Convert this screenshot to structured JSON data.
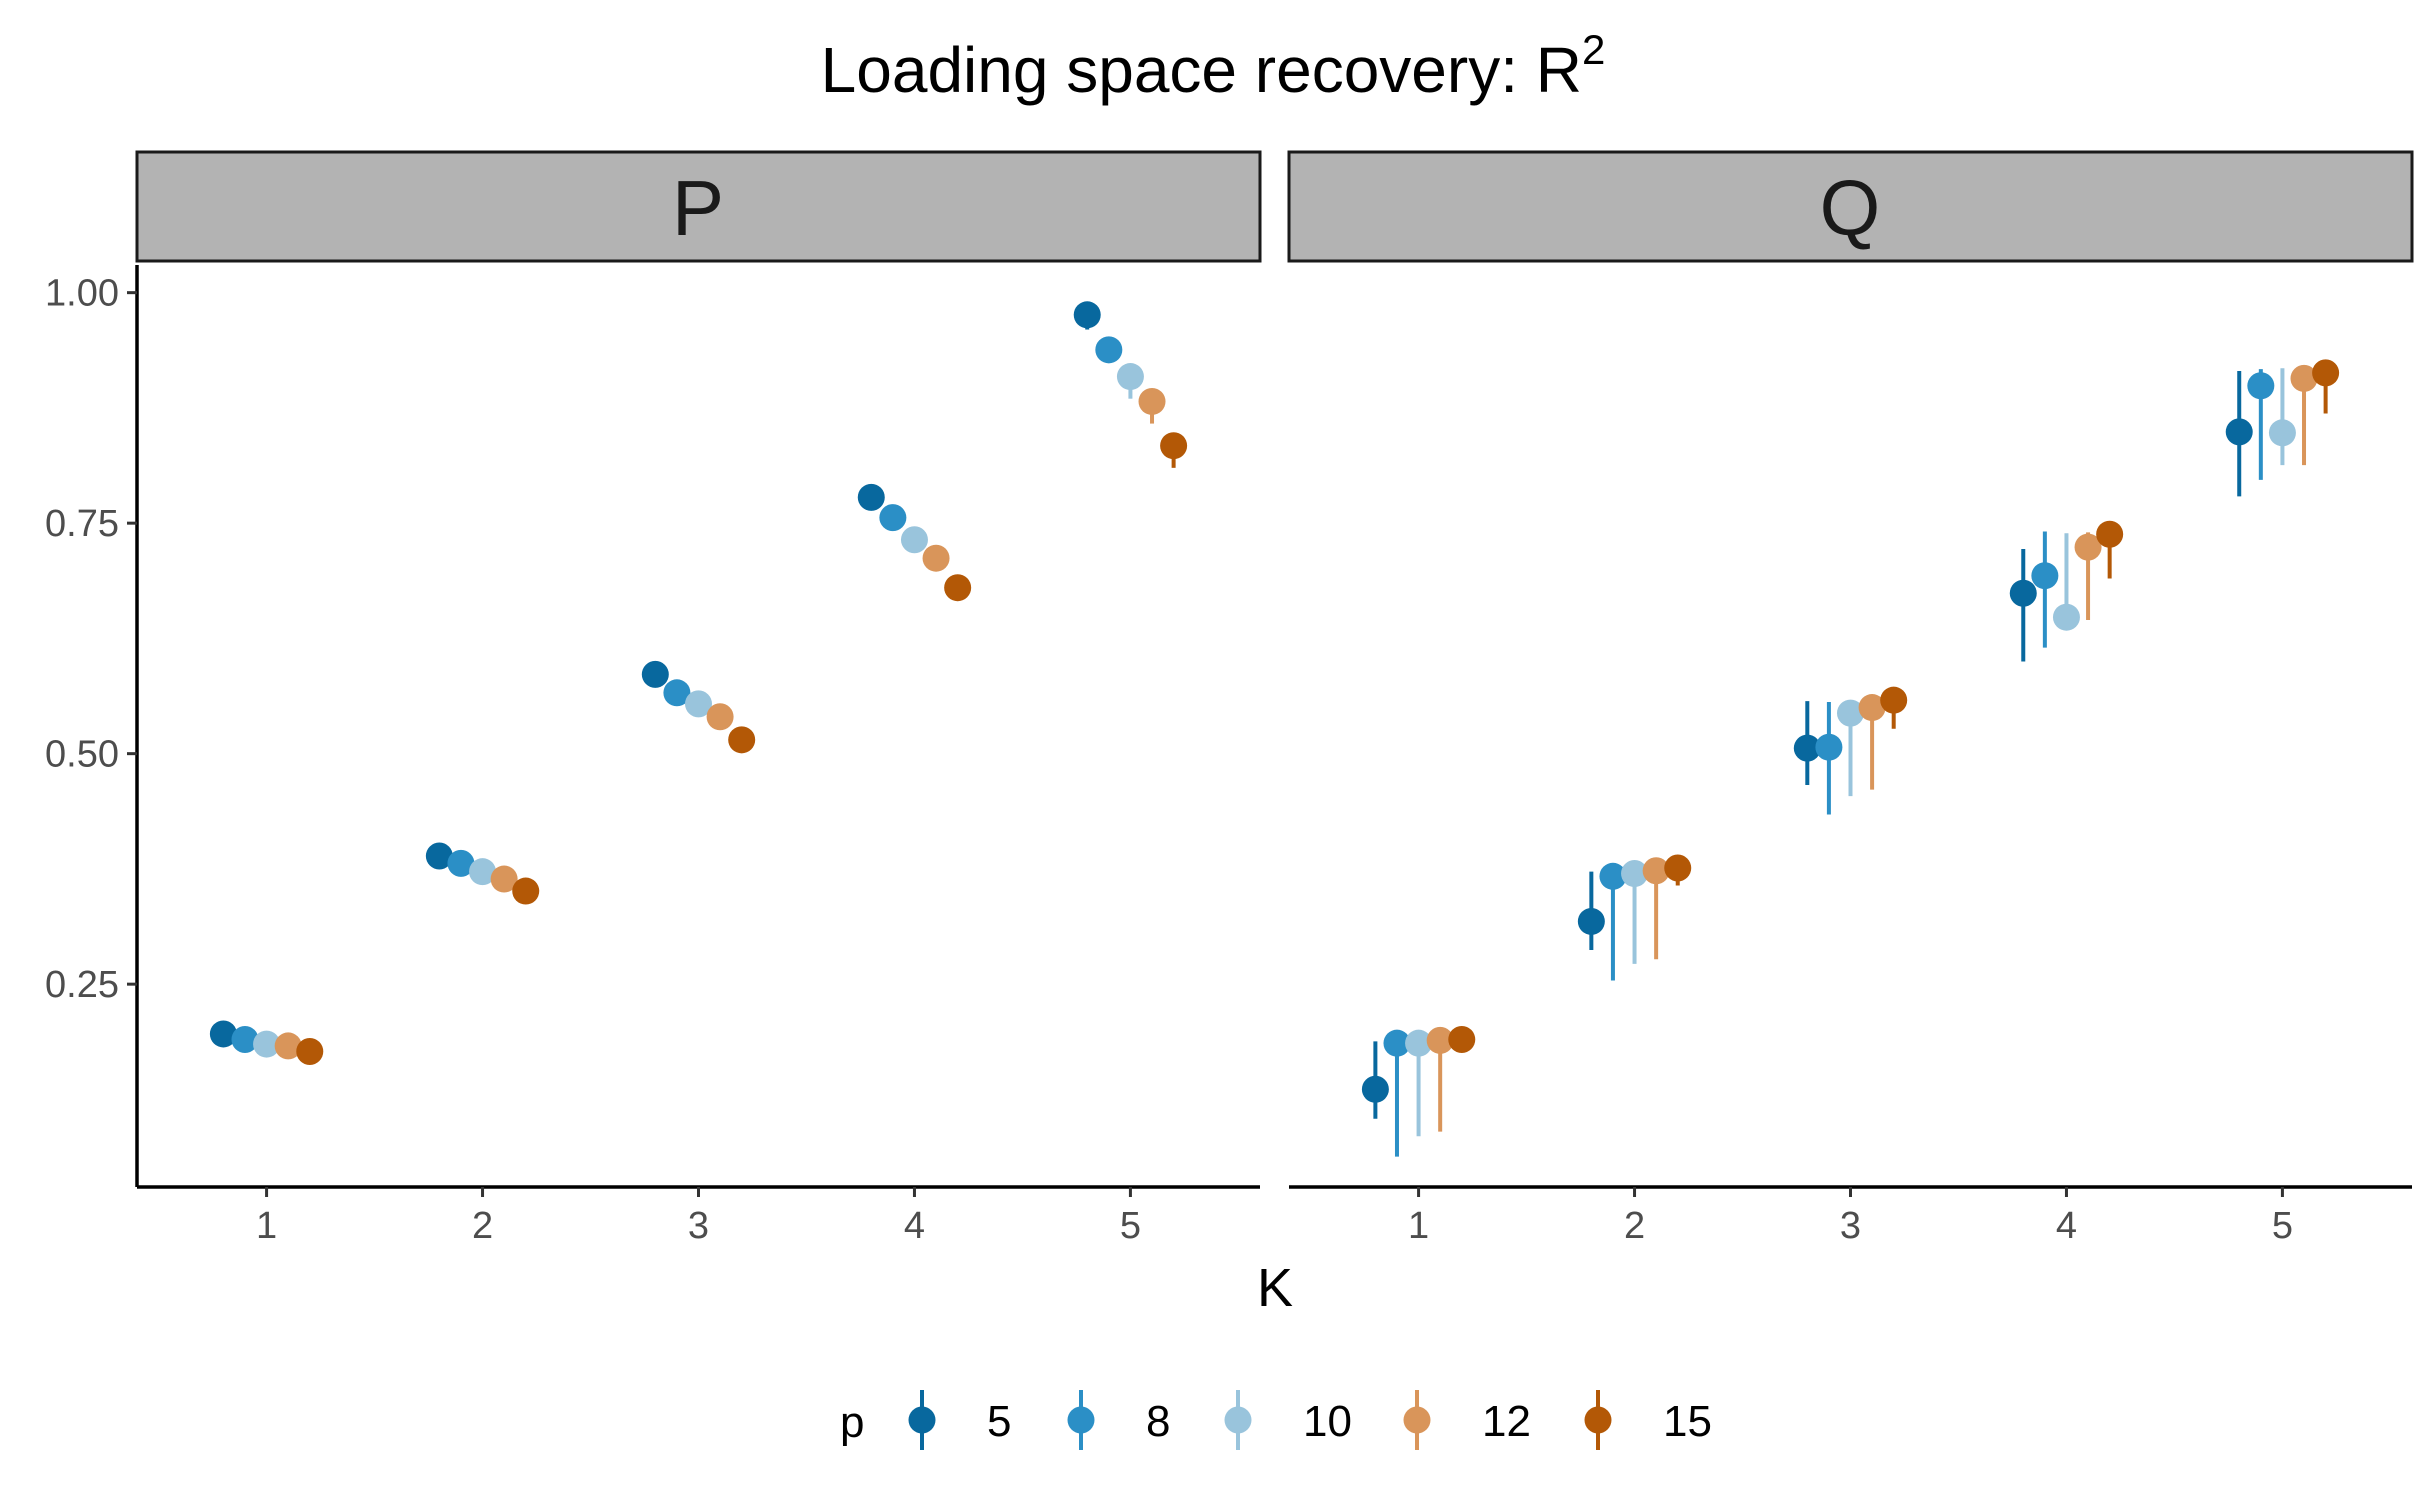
{
  "chart_data": {
    "type": "scatter",
    "title": "Loading space recovery: R",
    "title_superscript": "2",
    "xlabel": "K",
    "ylabel": "",
    "x": [
      1,
      2,
      3,
      4,
      5
    ],
    "ylim": [
      0.03,
      1.03
    ],
    "y_ticks": [
      "0.25",
      "0.50",
      "0.75",
      "1.00"
    ],
    "grid": false,
    "legend": {
      "title": "p",
      "position": "bottom",
      "entries": [
        {
          "label": "5",
          "color": "#08689e"
        },
        {
          "label": "8",
          "color": "#2b8fc6"
        },
        {
          "label": "10",
          "color": "#99c4dc"
        },
        {
          "label": "12",
          "color": "#d9955a"
        },
        {
          "label": "15",
          "color": "#b35806"
        }
      ]
    },
    "panels": [
      {
        "name": "P",
        "series": [
          {
            "p": "5",
            "y": [
              0.196,
              0.389,
              0.586,
              0.778,
              0.976
            ],
            "lower": [
              0.192,
              0.385,
              0.58,
              0.772,
              0.96
            ],
            "upper": [
              0.2,
              0.393,
              0.59,
              0.783,
              0.982
            ]
          },
          {
            "p": "8",
            "y": [
              0.19,
              0.381,
              0.566,
              0.756,
              0.938
            ],
            "lower": [
              0.186,
              0.377,
              0.561,
              0.75,
              0.932
            ],
            "upper": [
              0.194,
              0.385,
              0.57,
              0.76,
              0.944
            ]
          },
          {
            "p": "10",
            "y": [
              0.185,
              0.372,
              0.554,
              0.732,
              0.909
            ],
            "lower": [
              0.181,
              0.368,
              0.548,
              0.727,
              0.885
            ],
            "upper": [
              0.189,
              0.376,
              0.558,
              0.737,
              0.915
            ]
          },
          {
            "p": "12",
            "y": [
              0.183,
              0.364,
              0.54,
              0.712,
              0.882
            ],
            "lower": [
              0.179,
              0.36,
              0.534,
              0.706,
              0.858
            ],
            "upper": [
              0.187,
              0.368,
              0.545,
              0.716,
              0.888
            ]
          },
          {
            "p": "15",
            "y": [
              0.177,
              0.351,
              0.515,
              0.68,
              0.834
            ],
            "lower": [
              0.173,
              0.347,
              0.51,
              0.674,
              0.81
            ],
            "upper": [
              0.181,
              0.355,
              0.52,
              0.684,
              0.84
            ]
          }
        ]
      },
      {
        "name": "Q",
        "series": [
          {
            "p": "5",
            "y": [
              0.136,
              0.318,
              0.506,
              0.674,
              0.849
            ],
            "lower": [
              0.104,
              0.287,
              0.466,
              0.6,
              0.779
            ],
            "upper": [
              0.188,
              0.372,
              0.557,
              0.722,
              0.915
            ]
          },
          {
            "p": "8",
            "y": [
              0.186,
              0.367,
              0.507,
              0.693,
              0.899
            ],
            "lower": [
              0.063,
              0.254,
              0.434,
              0.615,
              0.797
            ],
            "upper": [
              0.191,
              0.372,
              0.556,
              0.741,
              0.917
            ]
          },
          {
            "p": "10",
            "y": [
              0.186,
              0.37,
              0.544,
              0.648,
              0.848
            ],
            "lower": [
              0.085,
              0.272,
              0.454,
              0.637,
              0.813
            ],
            "upper": [
              0.19,
              0.373,
              0.556,
              0.739,
              0.918
            ]
          },
          {
            "p": "12",
            "y": [
              0.189,
              0.373,
              0.55,
              0.724,
              0.907
            ],
            "lower": [
              0.09,
              0.277,
              0.461,
              0.645,
              0.813
            ],
            "upper": [
              0.192,
              0.376,
              0.557,
              0.74,
              0.916
            ]
          },
          {
            "p": "15",
            "y": [
              0.19,
              0.376,
              0.558,
              0.738,
              0.913
            ],
            "lower": [
              0.176,
              0.357,
              0.527,
              0.69,
              0.869
            ],
            "upper": [
              0.193,
              0.379,
              0.561,
              0.741,
              0.918
            ]
          }
        ]
      }
    ]
  }
}
